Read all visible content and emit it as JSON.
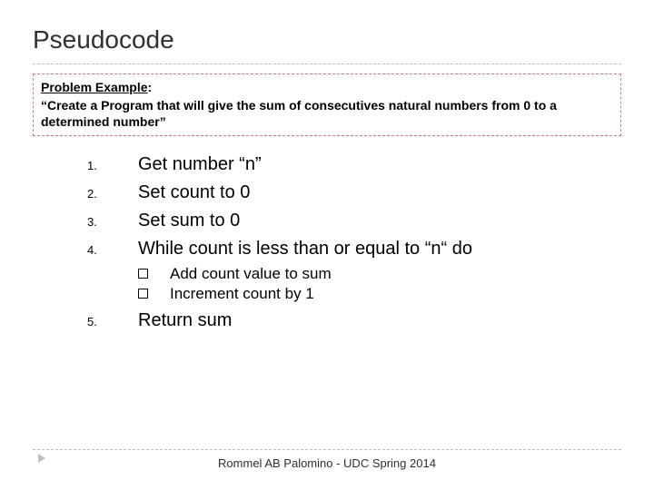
{
  "title": "Pseudocode",
  "problem": {
    "label": "Problem Example",
    "text": "“Create a Program that will give the sum of consecutives natural numbers from 0 to a determined number”"
  },
  "steps": [
    {
      "num": "1.",
      "text": "Get number “n”"
    },
    {
      "num": "2.",
      "text": "Set count  to 0"
    },
    {
      "num": "3.",
      "text": "Set sum to 0"
    },
    {
      "num": "4.",
      "text": "While count is less than or equal to “n“ do"
    }
  ],
  "substeps": [
    "Add count value to sum",
    "Increment count by 1"
  ],
  "step5": {
    "num": "5.",
    "text": "Return sum"
  },
  "footer": "Rommel AB Palomino - UDC Spring 2014",
  "style": {
    "title_fontsize": 28,
    "title_color": "#303030",
    "body_fontsize": 20,
    "stepnum_fontsize": 13,
    "substep_fontsize": 17,
    "problem_fontsize": 14,
    "footer_fontsize": 13,
    "background": "#ffffff",
    "dash_color": "#bfbfbf",
    "box_border_color": "#d07b7b",
    "text_color": "#000000"
  }
}
